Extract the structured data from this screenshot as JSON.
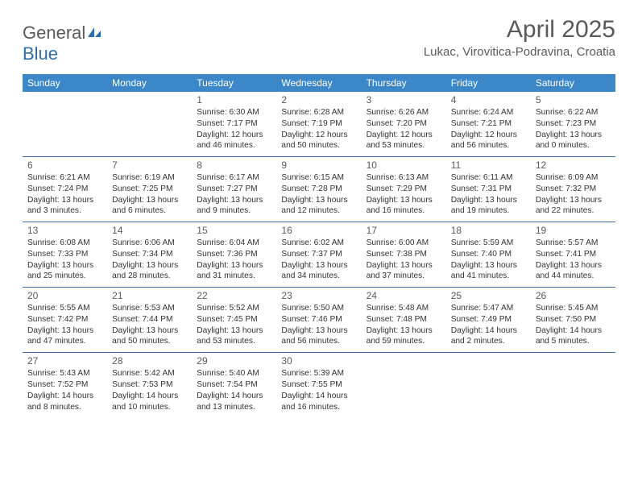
{
  "logo": {
    "general": "General",
    "blue": "Blue"
  },
  "title": "April 2025",
  "location": "Lukac, Virovitica-Podravina, Croatia",
  "colors": {
    "header_bg": "#3b87c8",
    "header_text": "#ffffff",
    "rule": "#3b6fa0",
    "text_muted": "#5a5a5a",
    "text_body": "#333333",
    "logo_blue": "#2f6fa8",
    "page_bg": "#ffffff"
  },
  "weekdays": [
    "Sunday",
    "Monday",
    "Tuesday",
    "Wednesday",
    "Thursday",
    "Friday",
    "Saturday"
  ],
  "weeks": [
    [
      null,
      null,
      {
        "n": "1",
        "sr": "6:30 AM",
        "ss": "7:17 PM",
        "dl": "12 hours and 46 minutes."
      },
      {
        "n": "2",
        "sr": "6:28 AM",
        "ss": "7:19 PM",
        "dl": "12 hours and 50 minutes."
      },
      {
        "n": "3",
        "sr": "6:26 AM",
        "ss": "7:20 PM",
        "dl": "12 hours and 53 minutes."
      },
      {
        "n": "4",
        "sr": "6:24 AM",
        "ss": "7:21 PM",
        "dl": "12 hours and 56 minutes."
      },
      {
        "n": "5",
        "sr": "6:22 AM",
        "ss": "7:23 PM",
        "dl": "13 hours and 0 minutes."
      }
    ],
    [
      {
        "n": "6",
        "sr": "6:21 AM",
        "ss": "7:24 PM",
        "dl": "13 hours and 3 minutes."
      },
      {
        "n": "7",
        "sr": "6:19 AM",
        "ss": "7:25 PM",
        "dl": "13 hours and 6 minutes."
      },
      {
        "n": "8",
        "sr": "6:17 AM",
        "ss": "7:27 PM",
        "dl": "13 hours and 9 minutes."
      },
      {
        "n": "9",
        "sr": "6:15 AM",
        "ss": "7:28 PM",
        "dl": "13 hours and 12 minutes."
      },
      {
        "n": "10",
        "sr": "6:13 AM",
        "ss": "7:29 PM",
        "dl": "13 hours and 16 minutes."
      },
      {
        "n": "11",
        "sr": "6:11 AM",
        "ss": "7:31 PM",
        "dl": "13 hours and 19 minutes."
      },
      {
        "n": "12",
        "sr": "6:09 AM",
        "ss": "7:32 PM",
        "dl": "13 hours and 22 minutes."
      }
    ],
    [
      {
        "n": "13",
        "sr": "6:08 AM",
        "ss": "7:33 PM",
        "dl": "13 hours and 25 minutes."
      },
      {
        "n": "14",
        "sr": "6:06 AM",
        "ss": "7:34 PM",
        "dl": "13 hours and 28 minutes."
      },
      {
        "n": "15",
        "sr": "6:04 AM",
        "ss": "7:36 PM",
        "dl": "13 hours and 31 minutes."
      },
      {
        "n": "16",
        "sr": "6:02 AM",
        "ss": "7:37 PM",
        "dl": "13 hours and 34 minutes."
      },
      {
        "n": "17",
        "sr": "6:00 AM",
        "ss": "7:38 PM",
        "dl": "13 hours and 37 minutes."
      },
      {
        "n": "18",
        "sr": "5:59 AM",
        "ss": "7:40 PM",
        "dl": "13 hours and 41 minutes."
      },
      {
        "n": "19",
        "sr": "5:57 AM",
        "ss": "7:41 PM",
        "dl": "13 hours and 44 minutes."
      }
    ],
    [
      {
        "n": "20",
        "sr": "5:55 AM",
        "ss": "7:42 PM",
        "dl": "13 hours and 47 minutes."
      },
      {
        "n": "21",
        "sr": "5:53 AM",
        "ss": "7:44 PM",
        "dl": "13 hours and 50 minutes."
      },
      {
        "n": "22",
        "sr": "5:52 AM",
        "ss": "7:45 PM",
        "dl": "13 hours and 53 minutes."
      },
      {
        "n": "23",
        "sr": "5:50 AM",
        "ss": "7:46 PM",
        "dl": "13 hours and 56 minutes."
      },
      {
        "n": "24",
        "sr": "5:48 AM",
        "ss": "7:48 PM",
        "dl": "13 hours and 59 minutes."
      },
      {
        "n": "25",
        "sr": "5:47 AM",
        "ss": "7:49 PM",
        "dl": "14 hours and 2 minutes."
      },
      {
        "n": "26",
        "sr": "5:45 AM",
        "ss": "7:50 PM",
        "dl": "14 hours and 5 minutes."
      }
    ],
    [
      {
        "n": "27",
        "sr": "5:43 AM",
        "ss": "7:52 PM",
        "dl": "14 hours and 8 minutes."
      },
      {
        "n": "28",
        "sr": "5:42 AM",
        "ss": "7:53 PM",
        "dl": "14 hours and 10 minutes."
      },
      {
        "n": "29",
        "sr": "5:40 AM",
        "ss": "7:54 PM",
        "dl": "14 hours and 13 minutes."
      },
      {
        "n": "30",
        "sr": "5:39 AM",
        "ss": "7:55 PM",
        "dl": "14 hours and 16 minutes."
      },
      null,
      null,
      null
    ]
  ],
  "labels": {
    "sunrise": "Sunrise:",
    "sunset": "Sunset:",
    "daylight": "Daylight:"
  }
}
